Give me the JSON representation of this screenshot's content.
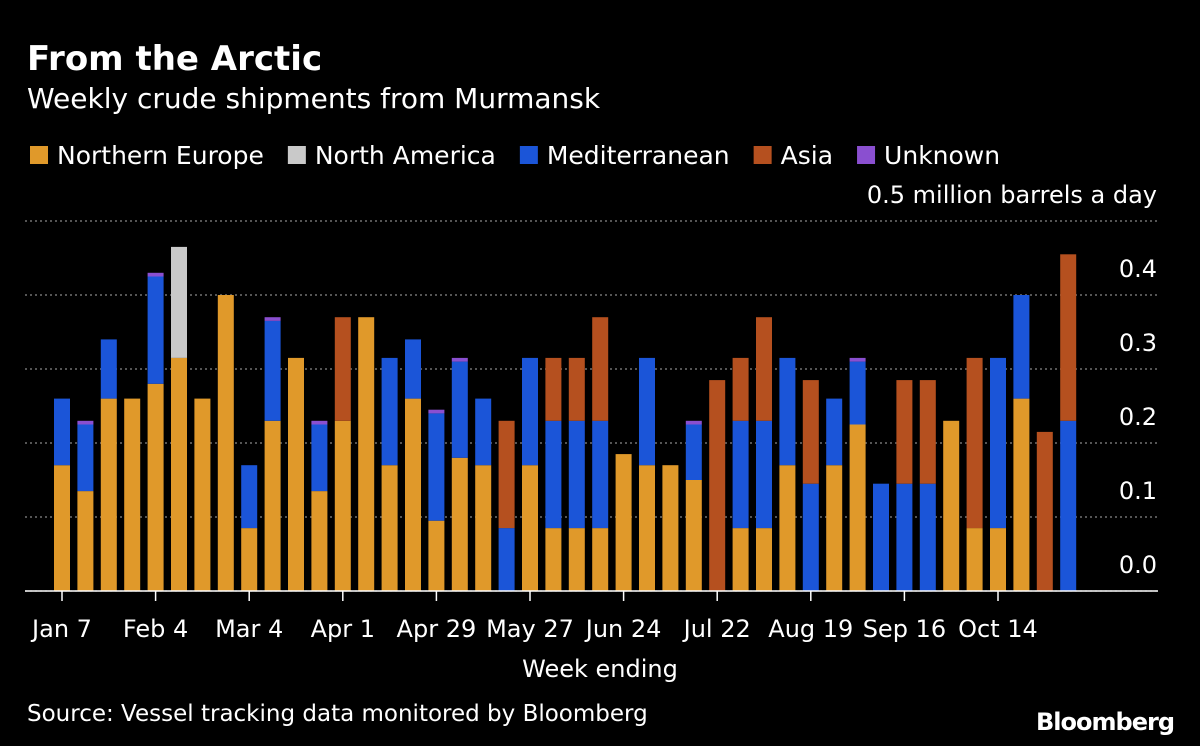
{
  "chart_data": {
    "type": "stacked_bar",
    "title": "From the Arctic",
    "subtitle": "Weekly crude shipments from Murmansk",
    "x_label": "Week ending",
    "source": "Source: Vessel tracking data monitored by Bloomberg",
    "brand": "Bloomberg",
    "categories": [
      "Jan 7",
      null,
      null,
      null,
      "Feb 4",
      null,
      null,
      null,
      "Mar 4",
      null,
      null,
      null,
      "Apr 1",
      null,
      null,
      null,
      "Apr 29",
      null,
      null,
      null,
      "May 27",
      null,
      null,
      null,
      "Jun 24",
      null,
      null,
      null,
      "Jul 22",
      null,
      null,
      null,
      "Aug 19",
      null,
      null,
      null,
      "Sep 16",
      null,
      null,
      null,
      "Oct 14",
      null,
      null,
      null
    ],
    "series": [
      {
        "name": "Northern Europe",
        "color": "#e0992a",
        "values": [
          0.17,
          0.135,
          0.26,
          0.26,
          0.28,
          0.315,
          0.26,
          0.4,
          0.085,
          0.23,
          0.315,
          0.135,
          0.23,
          0.37,
          0.17,
          0.26,
          0.095,
          0.18,
          0.17,
          0,
          0.17,
          0.085,
          0.085,
          0.085,
          0.185,
          0.17,
          0.17,
          0.15,
          0,
          0.085,
          0.085,
          0.17,
          0,
          0.17,
          0.225,
          0,
          0,
          0,
          0.23,
          0.085,
          0.085,
          0.26,
          0,
          0
        ]
      },
      {
        "name": "North America",
        "color": "#c9c9c9",
        "values": [
          0,
          0,
          0,
          0,
          0,
          0.15,
          0,
          0,
          0,
          0,
          0,
          0,
          0,
          0,
          0,
          0,
          0,
          0,
          0,
          0,
          0,
          0,
          0,
          0,
          0,
          0,
          0,
          0,
          0,
          0,
          0,
          0,
          0,
          0,
          0,
          0,
          0,
          0,
          0,
          0,
          0,
          0,
          0,
          0
        ]
      },
      {
        "name": "Mediterranean",
        "color": "#1b55d8",
        "values": [
          0.09,
          0.09,
          0.08,
          0,
          0.145,
          0,
          0,
          0,
          0.085,
          0.135,
          0,
          0.09,
          0,
          0,
          0.145,
          0.08,
          0.145,
          0.13,
          0.09,
          0.085,
          0.145,
          0.145,
          0.145,
          0.145,
          0,
          0.145,
          0,
          0.075,
          0,
          0.145,
          0.145,
          0.145,
          0.145,
          0.09,
          0.085,
          0.145,
          0.145,
          0.145,
          0,
          0,
          0.23,
          0.14,
          0,
          0.23
        ]
      },
      {
        "name": "Asia",
        "color": "#b5501f",
        "values": [
          0,
          0,
          0,
          0,
          0,
          0,
          0,
          0,
          0,
          0,
          0,
          0,
          0.14,
          0,
          0,
          0,
          0,
          0,
          0,
          0.145,
          0,
          0.085,
          0.085,
          0.14,
          0,
          0,
          0,
          0,
          0.285,
          0.085,
          0.14,
          0,
          0.14,
          0,
          0,
          0,
          0.14,
          0.14,
          0,
          0.23,
          0,
          0,
          0.215,
          0.225
        ]
      },
      {
        "name": "Unknown",
        "color": "#8a4fd0",
        "values": [
          0,
          0.005,
          0,
          0,
          0.005,
          0,
          0,
          0,
          0,
          0.005,
          0,
          0.005,
          0,
          0,
          0,
          0,
          0.005,
          0.005,
          0,
          0,
          0,
          0,
          0,
          0,
          0,
          0,
          0,
          0.005,
          0,
          0,
          0,
          0,
          0,
          0,
          0.005,
          0,
          0,
          0,
          0,
          0,
          0,
          0,
          0,
          0
        ]
      }
    ],
    "ylim": [
      0,
      0.5
    ],
    "yticks": [
      {
        "value": 0,
        "label": "0.0"
      },
      0.1,
      0.2,
      0.3,
      0.4,
      {
        "value": 0.5,
        "label": "0.5 million barrels a day"
      }
    ],
    "grid": true
  }
}
